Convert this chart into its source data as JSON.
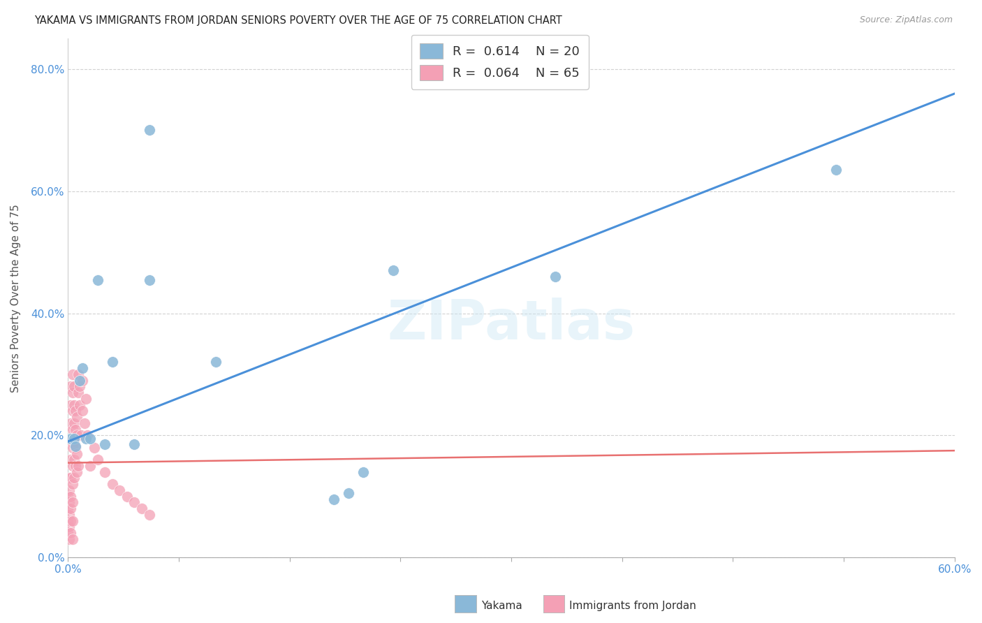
{
  "title": "YAKAMA VS IMMIGRANTS FROM JORDAN SENIORS POVERTY OVER THE AGE OF 75 CORRELATION CHART",
  "source": "Source: ZipAtlas.com",
  "ylabel": "Seniors Poverty Over the Age of 75",
  "xlabel": "",
  "xlim": [
    0.0,
    0.6
  ],
  "ylim": [
    0.0,
    0.85
  ],
  "xtick_labeled": [
    0.0,
    0.6
  ],
  "xtick_minor": [
    0.075,
    0.15,
    0.225,
    0.3,
    0.375,
    0.45,
    0.525
  ],
  "ytick_labeled": [
    0.0,
    0.2,
    0.4,
    0.6,
    0.8
  ],
  "background_color": "#ffffff",
  "watermark": "ZIPatlas",
  "yakama_color": "#8ab8d8",
  "jordan_color": "#f4a0b5",
  "yakama_line_color": "#4a90d9",
  "jordan_line_color": "#e87070",
  "yakama_scatter": [
    [
      0.002,
      0.195
    ],
    [
      0.004,
      0.195
    ],
    [
      0.005,
      0.182
    ],
    [
      0.008,
      0.29
    ],
    [
      0.01,
      0.31
    ],
    [
      0.012,
      0.195
    ],
    [
      0.015,
      0.195
    ],
    [
      0.02,
      0.455
    ],
    [
      0.025,
      0.185
    ],
    [
      0.03,
      0.32
    ],
    [
      0.045,
      0.185
    ],
    [
      0.055,
      0.7
    ],
    [
      0.055,
      0.455
    ],
    [
      0.1,
      0.32
    ],
    [
      0.18,
      0.095
    ],
    [
      0.19,
      0.105
    ],
    [
      0.2,
      0.14
    ],
    [
      0.22,
      0.47
    ],
    [
      0.33,
      0.46
    ],
    [
      0.52,
      0.635
    ]
  ],
  "jordan_scatter": [
    [
      0.0,
      0.1
    ],
    [
      0.0,
      0.08
    ],
    [
      0.0,
      0.06
    ],
    [
      0.0,
      0.04
    ],
    [
      0.001,
      0.13
    ],
    [
      0.001,
      0.11
    ],
    [
      0.001,
      0.09
    ],
    [
      0.001,
      0.07
    ],
    [
      0.001,
      0.05
    ],
    [
      0.001,
      0.03
    ],
    [
      0.002,
      0.28
    ],
    [
      0.002,
      0.25
    ],
    [
      0.002,
      0.22
    ],
    [
      0.002,
      0.19
    ],
    [
      0.002,
      0.16
    ],
    [
      0.002,
      0.13
    ],
    [
      0.002,
      0.1
    ],
    [
      0.002,
      0.08
    ],
    [
      0.002,
      0.06
    ],
    [
      0.002,
      0.04
    ],
    [
      0.003,
      0.3
    ],
    [
      0.003,
      0.27
    ],
    [
      0.003,
      0.24
    ],
    [
      0.003,
      0.21
    ],
    [
      0.003,
      0.18
    ],
    [
      0.003,
      0.15
    ],
    [
      0.003,
      0.12
    ],
    [
      0.003,
      0.09
    ],
    [
      0.003,
      0.06
    ],
    [
      0.003,
      0.03
    ],
    [
      0.004,
      0.28
    ],
    [
      0.004,
      0.25
    ],
    [
      0.004,
      0.22
    ],
    [
      0.004,
      0.19
    ],
    [
      0.004,
      0.16
    ],
    [
      0.004,
      0.13
    ],
    [
      0.005,
      0.24
    ],
    [
      0.005,
      0.21
    ],
    [
      0.005,
      0.18
    ],
    [
      0.005,
      0.15
    ],
    [
      0.006,
      0.23
    ],
    [
      0.006,
      0.2
    ],
    [
      0.006,
      0.17
    ],
    [
      0.006,
      0.14
    ],
    [
      0.007,
      0.3
    ],
    [
      0.007,
      0.27
    ],
    [
      0.007,
      0.15
    ],
    [
      0.008,
      0.28
    ],
    [
      0.008,
      0.25
    ],
    [
      0.009,
      0.2
    ],
    [
      0.01,
      0.29
    ],
    [
      0.01,
      0.24
    ],
    [
      0.011,
      0.22
    ],
    [
      0.012,
      0.26
    ],
    [
      0.013,
      0.2
    ],
    [
      0.015,
      0.15
    ],
    [
      0.018,
      0.18
    ],
    [
      0.02,
      0.16
    ],
    [
      0.025,
      0.14
    ],
    [
      0.03,
      0.12
    ],
    [
      0.035,
      0.11
    ],
    [
      0.04,
      0.1
    ],
    [
      0.045,
      0.09
    ],
    [
      0.05,
      0.08
    ],
    [
      0.055,
      0.07
    ]
  ],
  "yakama_trendline": [
    [
      0.0,
      0.19
    ],
    [
      0.6,
      0.76
    ]
  ],
  "jordan_trendline": [
    [
      0.0,
      0.155
    ],
    [
      0.6,
      0.175
    ]
  ]
}
